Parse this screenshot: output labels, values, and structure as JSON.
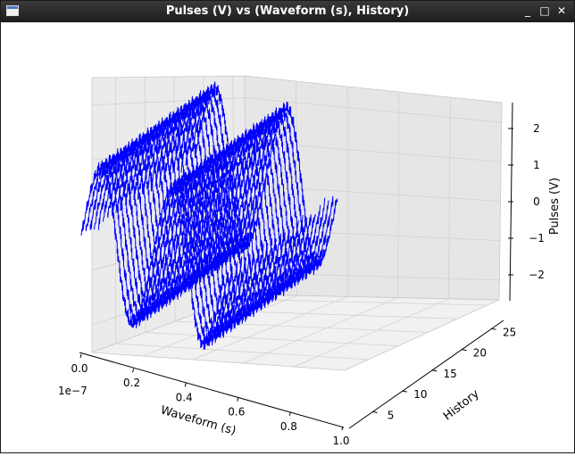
{
  "window": {
    "title": "Pulses (V) vs (Waveform (s), History)",
    "controls": {
      "minimize": "_",
      "maximize": "□",
      "close": "✕"
    }
  },
  "chart_data": {
    "type": "3d-line",
    "title": "",
    "xlabel": "Waveform (s)",
    "x_offset_text": "1e−7",
    "ylabel": "History",
    "zlabel": "Pulses (V)",
    "xlim": [
      0.0,
      1.0
    ],
    "ylim": [
      1,
      27
    ],
    "zlim": [
      -2.5,
      2.5
    ],
    "xticks": [
      "0.0",
      "0.2",
      "0.4",
      "0.6",
      "0.8",
      "1.0"
    ],
    "yticks": [
      "5",
      "10",
      "15",
      "20",
      "25"
    ],
    "zticks": [
      "−2",
      "−1",
      "0",
      "1",
      "2"
    ],
    "grid": true,
    "line_color": "#0000ff",
    "series": {
      "count": 27,
      "function": "sine",
      "amplitude": 2,
      "cycles_per_trace": 2,
      "history_values": [
        1,
        2,
        3,
        4,
        5,
        6,
        7,
        8,
        9,
        10,
        11,
        12,
        13,
        14,
        15,
        16,
        17,
        18,
        19,
        20,
        21,
        22,
        23,
        24,
        25,
        26,
        27
      ],
      "noise": "high-frequency ripple on each trace"
    }
  }
}
